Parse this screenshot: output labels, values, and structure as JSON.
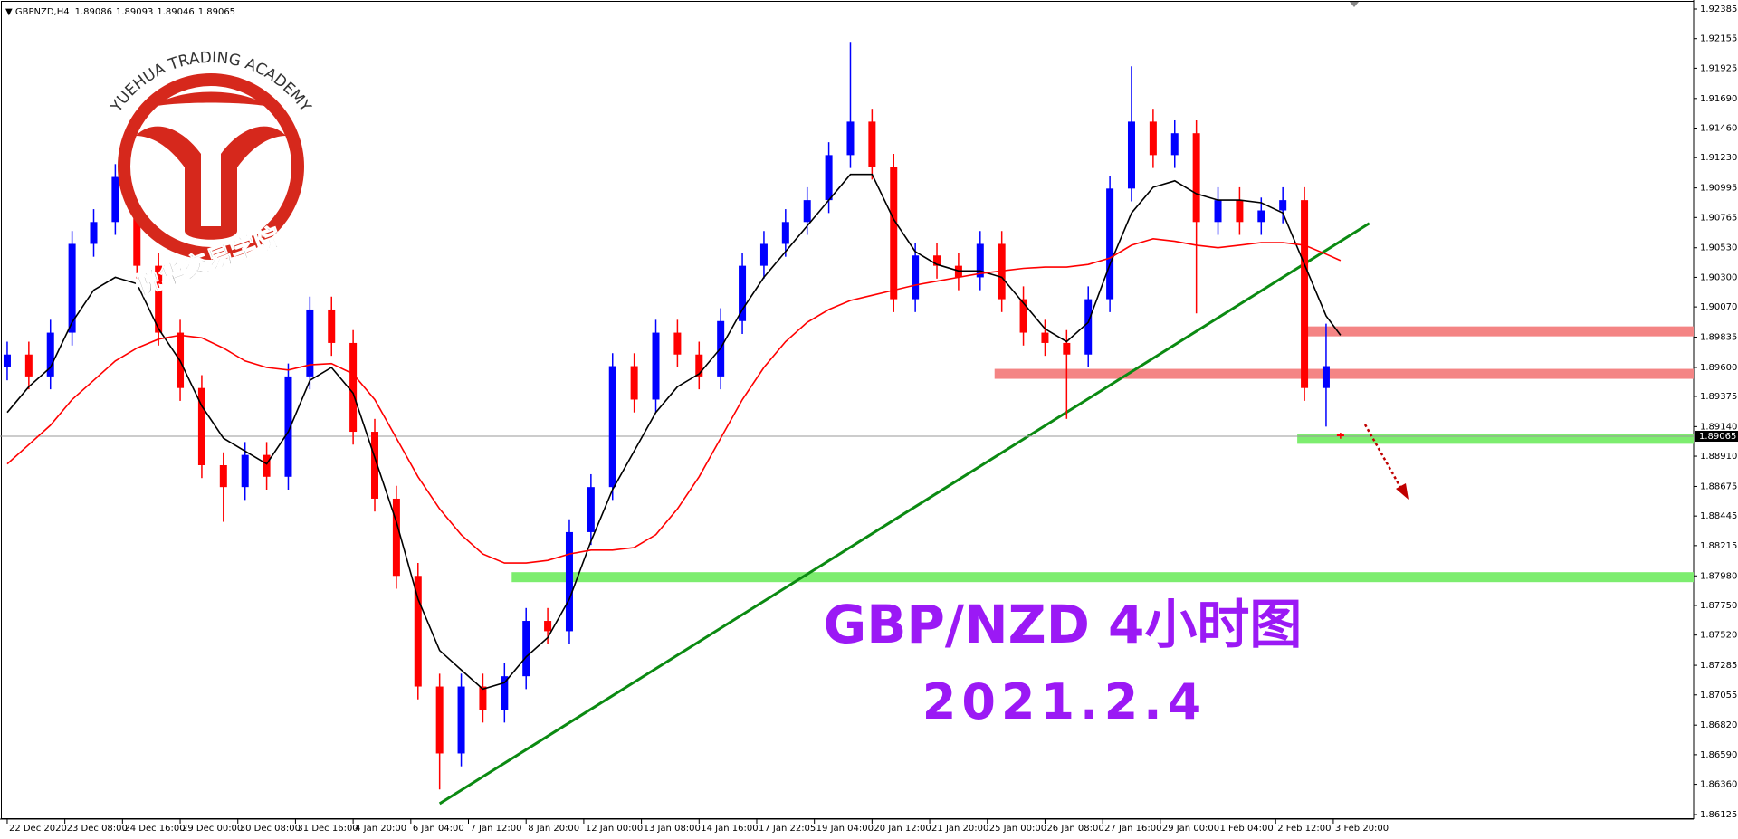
{
  "chart_data": {
    "type": "candlestick",
    "header": {
      "symbol": "GBPNZD,H4"
    },
    "logo": {
      "arc_text": "YUEHUA TRADING ACADEMY",
      "name": "悦华交易学院"
    },
    "annotations": [
      "GBP/NZD 4小时图",
      "2021.2.4"
    ],
    "annotation_color": "#9b19f5",
    "up_color": "#0000ff",
    "down_color": "#ff0000",
    "xlim": [
      -1,
      234
    ],
    "ylim": [
      1.86125,
      1.92385
    ],
    "x": [
      0,
      3,
      6,
      9,
      12,
      15,
      18,
      21,
      24,
      27,
      30,
      33,
      36,
      39,
      42,
      45,
      48,
      51,
      54,
      57,
      60,
      63,
      66,
      69,
      72,
      75,
      78,
      81,
      84,
      87,
      90,
      93,
      96,
      99,
      102,
      105,
      108,
      111,
      114,
      117,
      120,
      123,
      126,
      129,
      132,
      135,
      138,
      141,
      144,
      147,
      150,
      153,
      156,
      159,
      162,
      165,
      168,
      171,
      174,
      177,
      180,
      183,
      185
    ],
    "open": [
      1.896,
      1.897,
      1.8953,
      1.8987,
      1.9056,
      1.9073,
      1.9108,
      1.9039,
      1.8987,
      1.8944,
      1.8884,
      1.8867,
      1.8892,
      1.8875,
      1.8953,
      1.9005,
      1.8979,
      1.891,
      1.8858,
      1.8798,
      1.8712,
      1.866,
      1.8712,
      1.8694,
      1.872,
      1.8763,
      1.8755,
      1.8832,
      1.8867,
      1.8961,
      1.8935,
      1.8987,
      1.897,
      1.8953,
      1.8996,
      1.9039,
      1.9056,
      1.9073,
      1.909,
      1.9125,
      1.9151,
      1.9116,
      1.9013,
      1.9047,
      1.9039,
      1.903,
      1.9056,
      1.9013,
      1.8987,
      1.8979,
      1.897,
      1.9013,
      1.9099,
      1.9151,
      1.9125,
      1.9142,
      1.9073,
      1.909,
      1.9073,
      1.9082,
      1.909,
      1.8944,
      1.89086
    ],
    "high": [
      1.898,
      1.898,
      1.8997,
      1.9066,
      1.9083,
      1.9118,
      1.9118,
      1.9049,
      1.8997,
      1.8954,
      1.8894,
      1.8902,
      1.8902,
      1.8963,
      1.9015,
      1.9015,
      1.8989,
      1.892,
      1.8868,
      1.8808,
      1.8722,
      1.8722,
      1.8722,
      1.873,
      1.8773,
      1.8773,
      1.8842,
      1.8877,
      1.8971,
      1.8971,
      1.8997,
      1.8997,
      1.898,
      1.9006,
      1.9049,
      1.9066,
      1.9083,
      1.91,
      1.9135,
      1.9213,
      1.9161,
      1.9126,
      1.9057,
      1.9057,
      1.9049,
      1.9066,
      1.9066,
      1.9023,
      1.8997,
      1.8989,
      1.9023,
      1.9109,
      1.9194,
      1.9161,
      1.9152,
      1.9152,
      1.91,
      1.91,
      1.9092,
      1.91,
      1.91,
      1.8994,
      1.89093
    ],
    "low": [
      1.895,
      1.8943,
      1.8943,
      1.8977,
      1.9046,
      1.9063,
      1.9029,
      1.8977,
      1.8934,
      1.8874,
      1.884,
      1.8857,
      1.8865,
      1.8865,
      1.8943,
      1.8969,
      1.89,
      1.8848,
      1.8788,
      1.8702,
      1.8632,
      1.865,
      1.8684,
      1.8684,
      1.871,
      1.8745,
      1.8745,
      1.8822,
      1.8857,
      1.8925,
      1.8925,
      1.896,
      1.8943,
      1.8943,
      1.8986,
      1.9029,
      1.9046,
      1.9063,
      1.908,
      1.9115,
      1.9106,
      1.9003,
      1.9003,
      1.9029,
      1.902,
      1.902,
      1.9003,
      1.8977,
      1.8969,
      1.892,
      1.896,
      1.9003,
      1.9089,
      1.9115,
      1.9115,
      1.9002,
      1.9063,
      1.9063,
      1.9063,
      1.9072,
      1.8934,
      1.8914,
      1.89046
    ],
    "close": [
      1.897,
      1.8953,
      1.8987,
      1.9056,
      1.9073,
      1.9108,
      1.9039,
      1.8987,
      1.8944,
      1.8884,
      1.8867,
      1.8892,
      1.8875,
      1.8953,
      1.9005,
      1.8979,
      1.891,
      1.8858,
      1.8798,
      1.8712,
      1.866,
      1.8712,
      1.8694,
      1.872,
      1.8763,
      1.8755,
      1.8832,
      1.8867,
      1.8961,
      1.8935,
      1.8987,
      1.897,
      1.8953,
      1.8996,
      1.9039,
      1.9056,
      1.9073,
      1.909,
      1.9125,
      1.9151,
      1.9116,
      1.9013,
      1.9047,
      1.9039,
      1.903,
      1.9056,
      1.9013,
      1.8987,
      1.8979,
      1.897,
      1.9013,
      1.9099,
      1.9151,
      1.9125,
      1.9142,
      1.9073,
      1.909,
      1.9073,
      1.9082,
      1.909,
      1.8944,
      1.8961,
      1.89065
    ],
    "lines": [
      {
        "color": "#000000",
        "values": [
          1.8925,
          1.8945,
          1.896,
          1.8995,
          1.902,
          1.903,
          1.9025,
          1.899,
          1.8965,
          1.893,
          1.8905,
          1.8895,
          1.8885,
          1.891,
          1.895,
          1.896,
          1.894,
          1.889,
          1.884,
          1.878,
          1.874,
          1.8725,
          1.871,
          1.8715,
          1.8735,
          1.875,
          1.878,
          1.8825,
          1.8865,
          1.8895,
          1.8925,
          1.8945,
          1.8955,
          1.8975,
          1.9005,
          1.903,
          1.905,
          1.907,
          1.909,
          1.911,
          1.911,
          1.9075,
          1.905,
          1.904,
          1.9035,
          1.9035,
          1.903,
          1.901,
          1.899,
          1.898,
          1.8995,
          1.904,
          1.908,
          1.91,
          1.9105,
          1.9095,
          1.909,
          1.909,
          1.9088,
          1.908,
          1.904,
          1.9,
          1.8985
        ]
      },
      {
        "color": "#ff0000",
        "values": [
          1.8885,
          1.89,
          1.8915,
          1.8935,
          1.895,
          1.8965,
          1.8975,
          1.8982,
          1.8985,
          1.8983,
          1.8975,
          1.8965,
          1.896,
          1.8958,
          1.8962,
          1.8963,
          1.8955,
          1.8935,
          1.8905,
          1.8875,
          1.885,
          1.883,
          1.8815,
          1.8808,
          1.8808,
          1.881,
          1.8815,
          1.8818,
          1.8818,
          1.882,
          1.883,
          1.885,
          1.8875,
          1.8905,
          1.8935,
          1.896,
          1.898,
          1.8995,
          1.9005,
          1.9012,
          1.9016,
          1.902,
          1.9024,
          1.9027,
          1.903,
          1.9033,
          1.9035,
          1.9037,
          1.9038,
          1.9038,
          1.904,
          1.9045,
          1.9055,
          1.906,
          1.9058,
          1.9055,
          1.9053,
          1.9055,
          1.9057,
          1.9057,
          1.9055,
          1.9048,
          1.9043
        ]
      }
    ],
    "levels": [
      {
        "value": 1.8988,
        "x": 180,
        "color": "#f48484"
      },
      {
        "value": 1.8955,
        "x": 137,
        "color": "#f48484"
      },
      {
        "value": 1.89045,
        "x": 179,
        "color": "#7ded6f"
      },
      {
        "value": 1.8797,
        "x": 70,
        "color": "#7ded6f"
      }
    ],
    "trendline": {
      "x": [
        60,
        189
      ],
      "y": [
        1.8621,
        1.9072
      ],
      "color": "#0b8a12"
    },
    "yticks": [
      1.92385,
      1.92155,
      1.91925,
      {
        "value": 1.9169,
        "label": "1.91690"
      },
      {
        "value": 1.9146,
        "label": "1.91460"
      },
      {
        "value": 1.9123,
        "label": "1.91230"
      },
      1.90995,
      1.90765,
      {
        "value": 1.9053,
        "label": "1.90530"
      },
      {
        "value": 1.903,
        "label": "1.90300"
      },
      {
        "value": 1.9007,
        "label": "1.90070"
      },
      1.89835,
      {
        "value": 1.896,
        "label": "1.89600"
      },
      1.89375,
      {
        "value": 1.8914,
        "label": "1.89140"
      },
      {
        "value": 1.8891,
        "label": "1.88910"
      },
      1.88675,
      1.88445,
      1.88215,
      {
        "value": 1.8798,
        "label": "1.87980"
      },
      {
        "value": 1.8775,
        "label": "1.87750"
      },
      {
        "value": 1.8752,
        "label": "1.87520"
      },
      1.87285,
      1.87055,
      {
        "value": 1.8682,
        "label": "1.86820"
      },
      {
        "value": 1.8659,
        "label": "1.86590"
      },
      {
        "value": 1.8636,
        "label": "1.86360"
      },
      1.86125
    ],
    "xticks": [
      {
        "value": 0,
        "label": "22 Dec 2020"
      },
      {
        "value": 8,
        "label": "23 Dec 08:00"
      },
      {
        "value": 16,
        "label": "24 Dec 16:00"
      },
      {
        "value": 24,
        "label": "29 Dec 00:00"
      },
      {
        "value": 32,
        "label": "30 Dec 08:00"
      },
      {
        "value": 40,
        "label": "31 Dec 16:00"
      },
      {
        "value": 48,
        "label": "4 Jan 20:00"
      },
      {
        "value": 56,
        "label": "6 Jan 04:00"
      },
      {
        "value": 64,
        "label": "7 Jan 12:00"
      },
      {
        "value": 72,
        "label": "8 Jan 20:00"
      },
      {
        "value": 80,
        "label": "12 Jan 00:00"
      },
      {
        "value": 88,
        "label": "13 Jan 08:00"
      },
      {
        "value": 96,
        "label": "14 Jan 16:00"
      },
      {
        "value": 104,
        "label": "17 Jan 22:05"
      },
      {
        "value": 112,
        "label": "19 Jan 04:00"
      },
      {
        "value": 120,
        "label": "20 Jan 12:00"
      },
      {
        "value": 128,
        "label": "21 Jan 20:00"
      },
      {
        "value": 136,
        "label": "25 Jan 00:00"
      },
      {
        "value": 144,
        "label": "26 Jan 08:00"
      },
      {
        "value": 152,
        "label": "27 Jan 16:00"
      },
      {
        "value": 160,
        "label": "29 Jan 00:00"
      },
      {
        "value": 168,
        "label": "1 Feb 04:00"
      },
      {
        "value": 176,
        "label": "2 Feb 12:00"
      },
      {
        "value": 184,
        "label": "3 Feb 20:00"
      }
    ]
  }
}
